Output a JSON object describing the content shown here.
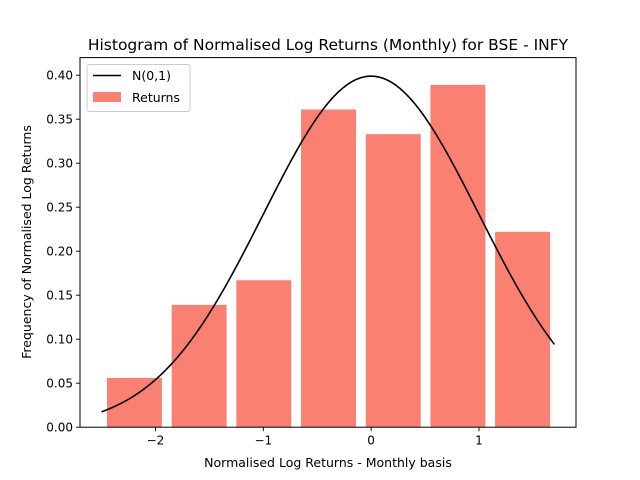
{
  "chart_data": {
    "type": "bar",
    "title": "Histogram of Normalised Log Returns (Monthly) for BSE - INFY",
    "xlabel": "Normalised Log Returns - Monthly basis",
    "ylabel": "Frequency of Normalised Log Returns",
    "xlim": [
      -2.7,
      1.9
    ],
    "ylim": [
      0,
      0.42
    ],
    "xticks": [
      -2,
      -1,
      0,
      1
    ],
    "xtick_labels": [
      "−2",
      "−1",
      "0",
      "1"
    ],
    "yticks": [
      0.0,
      0.05,
      0.1,
      0.15,
      0.2,
      0.25,
      0.3,
      0.35,
      0.4
    ],
    "ytick_labels": [
      "0.00",
      "0.05",
      "0.10",
      "0.15",
      "0.20",
      "0.25",
      "0.30",
      "0.35",
      "0.40"
    ],
    "legend_position": "top-left",
    "grid": false,
    "series": [
      {
        "name": "Returns",
        "kind": "bar",
        "color": "#FA8072",
        "bins": [
          {
            "x0": -2.45,
            "x1": -1.94,
            "value": 0.056
          },
          {
            "x0": -1.85,
            "x1": -1.34,
            "value": 0.139
          },
          {
            "x0": -1.25,
            "x1": -0.74,
            "value": 0.167
          },
          {
            "x0": -0.65,
            "x1": -0.14,
            "value": 0.361
          },
          {
            "x0": -0.05,
            "x1": 0.46,
            "value": 0.333
          },
          {
            "x0": 0.55,
            "x1": 1.06,
            "value": 0.389
          },
          {
            "x0": 1.15,
            "x1": 1.66,
            "value": 0.222
          }
        ]
      },
      {
        "name": "N(0,1)",
        "kind": "line",
        "color": "#000000",
        "x_range": [
          -2.5,
          1.7
        ]
      }
    ]
  }
}
